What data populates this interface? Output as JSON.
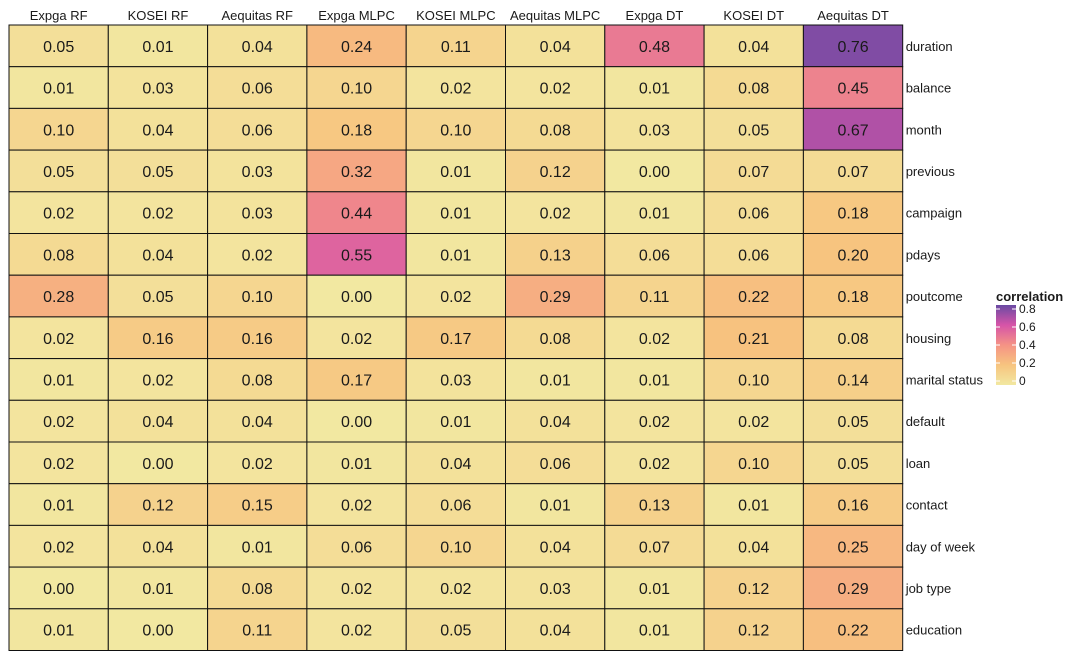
{
  "chart_data": {
    "type": "heatmap",
    "columns": [
      "Expga RF",
      "KOSEI RF",
      "Aequitas RF",
      "Expga MLPC",
      "KOSEI MLPC",
      "Aequitas MLPC",
      "Expga DT",
      "KOSEI DT",
      "Aequitas DT"
    ],
    "rows": [
      "duration",
      "balance",
      "month",
      "previous",
      "campaign",
      "pdays",
      "poutcome",
      "housing",
      "marital status",
      "default",
      "loan",
      "contact",
      "day of week",
      "job type",
      "education"
    ],
    "values": [
      [
        "0.05",
        "0.01",
        "0.04",
        "0.24",
        "0.11",
        "0.04",
        "0.48",
        "0.04",
        "0.76"
      ],
      [
        "0.01",
        "0.03",
        "0.06",
        "0.10",
        "0.02",
        "0.02",
        "0.01",
        "0.08",
        "0.45"
      ],
      [
        "0.10",
        "0.04",
        "0.06",
        "0.18",
        "0.10",
        "0.08",
        "0.03",
        "0.05",
        "0.67"
      ],
      [
        "0.05",
        "0.05",
        "0.03",
        "0.32",
        "0.01",
        "0.12",
        "0.00",
        "0.07",
        "0.07"
      ],
      [
        "0.02",
        "0.02",
        "0.03",
        "0.44",
        "0.01",
        "0.02",
        "0.01",
        "0.06",
        "0.18"
      ],
      [
        "0.08",
        "0.04",
        "0.02",
        "0.55",
        "0.01",
        "0.13",
        "0.06",
        "0.06",
        "0.20"
      ],
      [
        "0.28",
        "0.05",
        "0.10",
        "0.00",
        "0.02",
        "0.29",
        "0.11",
        "0.22",
        "0.18"
      ],
      [
        "0.02",
        "0.16",
        "0.16",
        "0.02",
        "0.17",
        "0.08",
        "0.02",
        "0.21",
        "0.08"
      ],
      [
        "0.01",
        "0.02",
        "0.08",
        "0.17",
        "0.03",
        "0.01",
        "0.01",
        "0.10",
        "0.14"
      ],
      [
        "0.02",
        "0.04",
        "0.04",
        "0.00",
        "0.01",
        "0.04",
        "0.02",
        "0.02",
        "0.05"
      ],
      [
        "0.02",
        "0.00",
        "0.02",
        "0.01",
        "0.04",
        "0.06",
        "0.02",
        "0.10",
        "0.05"
      ],
      [
        "0.01",
        "0.12",
        "0.15",
        "0.02",
        "0.06",
        "0.01",
        "0.13",
        "0.01",
        "0.16"
      ],
      [
        "0.02",
        "0.04",
        "0.01",
        "0.06",
        "0.10",
        "0.04",
        "0.07",
        "0.04",
        "0.25"
      ],
      [
        "0.00",
        "0.01",
        "0.08",
        "0.02",
        "0.02",
        "0.03",
        "0.01",
        "0.12",
        "0.29"
      ],
      [
        "0.01",
        "0.00",
        "0.11",
        "0.02",
        "0.05",
        "0.04",
        "0.01",
        "0.12",
        "0.22"
      ]
    ],
    "legend": {
      "title": "correlation",
      "ticks": [
        "0",
        "0.2",
        "0.4",
        "0.6",
        "0.8"
      ],
      "range": [
        0,
        0.8
      ],
      "placement": "right"
    },
    "color_scale": [
      "#f2e8a1",
      "#f7c47f",
      "#f59385",
      "#d654a8",
      "#6a4aa3"
    ],
    "grid": false
  }
}
